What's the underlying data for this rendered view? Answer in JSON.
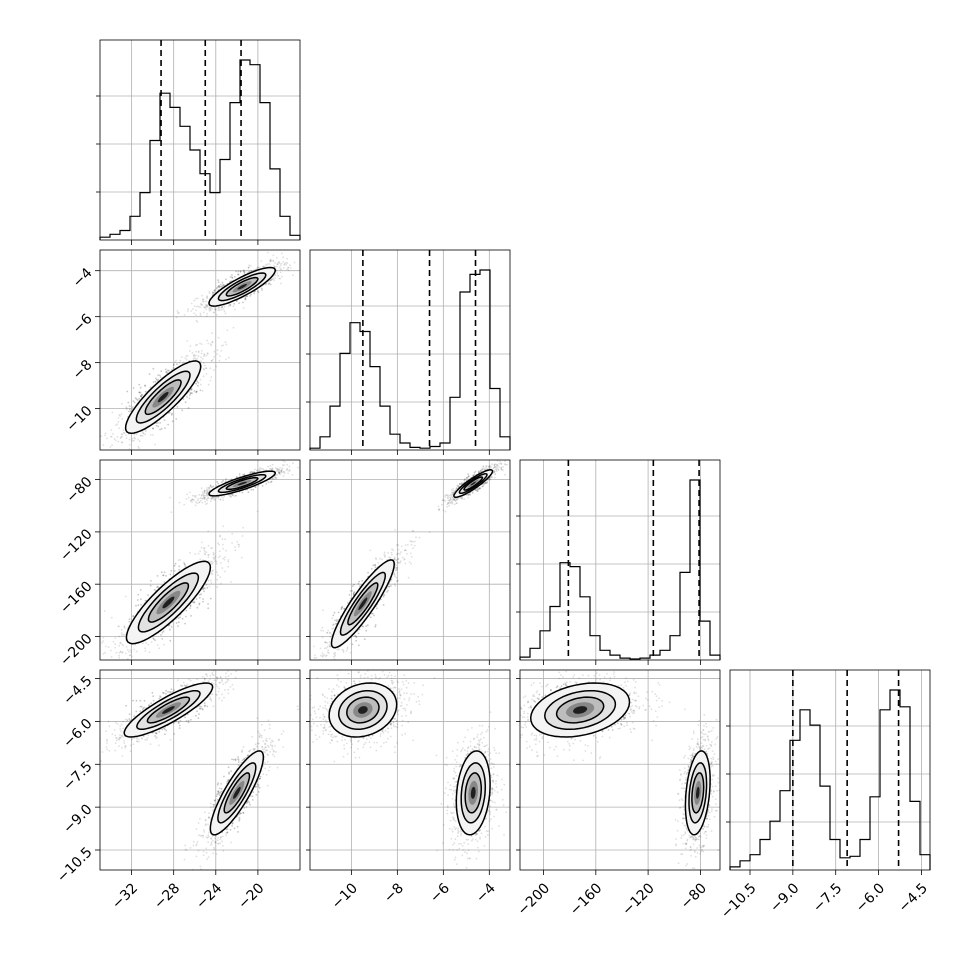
{
  "chart_data": {
    "type": "corner",
    "grid": true,
    "parameters": [
      {
        "range": [
          -35,
          -16
        ],
        "ticks": [
          -32,
          -28,
          -24,
          -20
        ],
        "tick_labels": [
          "−32",
          "−28",
          "−24",
          "−20"
        ],
        "quantiles": [
          -29.2,
          -25.0,
          -21.6
        ]
      },
      {
        "range": [
          -11.8,
          -3.1
        ],
        "ticks": [
          -10,
          -8,
          -6,
          -4
        ],
        "tick_labels": [
          "−10",
          "−8",
          "−6",
          "−4"
        ],
        "quantiles": [
          -9.5,
          -6.6,
          -4.6
        ]
      },
      {
        "range": [
          -218,
          -65
        ],
        "ticks": [
          -200,
          -160,
          -120,
          -80
        ],
        "tick_labels": [
          "−200",
          "−160",
          "−120",
          "−80"
        ],
        "quantiles": [
          -181,
          -116,
          -81
        ]
      },
      {
        "range": [
          -11.2,
          -4.2
        ],
        "ticks": [
          -10.5,
          -9.0,
          -7.5,
          -6.0,
          -4.5
        ],
        "tick_labels": [
          "−10.5",
          "−9.0",
          "−7.5",
          "−6.0",
          "−4.5"
        ],
        "quantiles": [
          -9.0,
          -7.1,
          -5.3
        ]
      }
    ],
    "histograms": [
      {
        "param": 0,
        "bins": 20,
        "counts": [
          0.3,
          0.6,
          1.0,
          2.5,
          5.0,
          10.5,
          15.5,
          14.0,
          12.0,
          9.5,
          7.0,
          5.0,
          8.5,
          14.5,
          19.0,
          18.5,
          14.5,
          7.5,
          2.5,
          0.5
        ]
      },
      {
        "param": 1,
        "bins": 20,
        "counts": [
          0.2,
          1.5,
          5.0,
          11.0,
          14.5,
          13.5,
          9.5,
          5.0,
          1.8,
          0.8,
          0.3,
          0.2,
          0.4,
          0.8,
          6.0,
          18.0,
          20.0,
          20.5,
          7.0,
          1.5
        ]
      },
      {
        "param": 2,
        "bins": 20,
        "counts": [
          0.3,
          1.2,
          3.0,
          5.5,
          10.0,
          9.6,
          6.5,
          2.5,
          1.0,
          0.5,
          0.2,
          0.1,
          0.2,
          0.5,
          1.0,
          2.5,
          9.0,
          18.5,
          4.0,
          0.5
        ]
      },
      {
        "param": 3,
        "bins": 20,
        "counts": [
          0.2,
          0.6,
          1.0,
          2.0,
          3.2,
          5.2,
          8.5,
          10.5,
          9.5,
          5.5,
          2.0,
          0.8,
          0.9,
          2.0,
          4.8,
          10.5,
          11.8,
          10.7,
          4.5,
          1.0
        ]
      }
    ],
    "pairs": [
      {
        "x": 0,
        "y": 1,
        "corr": 0.85,
        "modes": [
          {
            "cx": -29.0,
            "cy": -9.5,
            "sx": 1.7,
            "sy": 0.75,
            "w": 0.5
          },
          {
            "cx": -21.5,
            "cy": -4.7,
            "sx": 1.5,
            "sy": 0.4,
            "w": 0.5
          }
        ]
      },
      {
        "x": 0,
        "y": 2,
        "corr": 0.85,
        "modes": [
          {
            "cx": -28.5,
            "cy": -174,
            "sx": 1.9,
            "sy": 15,
            "w": 0.5
          },
          {
            "cx": -21.5,
            "cy": -83,
            "sx": 1.5,
            "sy": 4.5,
            "w": 0.5
          }
        ]
      },
      {
        "x": 1,
        "y": 2,
        "corr": 0.9,
        "modes": [
          {
            "cx": -9.5,
            "cy": -175,
            "sx": 0.65,
            "sy": 16,
            "w": 0.5
          },
          {
            "cx": -4.7,
            "cy": -83,
            "sx": 0.4,
            "sy": 5,
            "w": 0.5
          }
        ]
      },
      {
        "x": 0,
        "y": 3,
        "corr": 0.85,
        "modes": [
          {
            "cx": -28.5,
            "cy": -5.6,
            "sx": 2.0,
            "sy": 0.45,
            "w": 0.5
          },
          {
            "cx": -22.0,
            "cy": -8.5,
            "sx": 1.2,
            "sy": 0.7,
            "w": 0.5
          }
        ]
      },
      {
        "x": 1,
        "y": 3,
        "corr": 0.2,
        "modes": [
          {
            "cx": -9.5,
            "cy": -5.6,
            "sx": 0.7,
            "sy": 0.45,
            "w": 0.5
          },
          {
            "cx": -4.7,
            "cy": -8.5,
            "sx": 0.35,
            "sy": 0.7,
            "w": 0.5
          }
        ]
      },
      {
        "x": 2,
        "y": 3,
        "corr": 0.3,
        "modes": [
          {
            "cx": -172,
            "cy": -5.6,
            "sx": 18,
            "sy": 0.45,
            "w": 0.5
          },
          {
            "cx": -82,
            "cy": -8.5,
            "sx": 4.5,
            "sy": 0.7,
            "w": 0.5
          }
        ]
      }
    ]
  }
}
